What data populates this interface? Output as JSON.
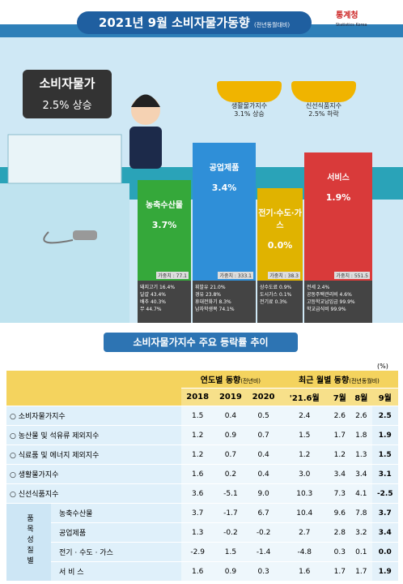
{
  "header": {
    "title": "2021년 9월 소비자물가동향",
    "note": "(전년동월대비)",
    "logo": "통계청",
    "logo_sub": "Statistics Korea"
  },
  "headline": {
    "label": "소비자물가",
    "value": "2.5% 상승"
  },
  "baskets": [
    {
      "label": "생활물가지수",
      "value": "3.1% 상승"
    },
    {
      "label": "신선식품지수",
      "value": "2.5% 하락"
    }
  ],
  "categories": [
    {
      "name": "농축수산물",
      "value": "3.7%",
      "weight": "가중치 : 77.1",
      "items": [
        "돼지고기 16.4%",
        "달걀 43.4%",
        "배추 40.3%",
        "무 44.7%"
      ]
    },
    {
      "name": "공업제품",
      "value": "3.4%",
      "weight": "가중치 : 333.1",
      "items": [
        "휘발유 21.0%",
        "경유 23.8%",
        "휴대전화기 8.3%",
        "남자학생복 74.1%"
      ]
    },
    {
      "name": "전기·수도·가스",
      "value": "0.0%",
      "weight": "가중치 : 38.3",
      "items": [
        "상수도료 0.9%",
        "도시가스 0.1%",
        "전기료 0.3%"
      ]
    },
    {
      "name": "서비스",
      "value": "1.9%",
      "weight": "가중치 : 551.5",
      "items": [
        "전세 2.4%",
        "공동주택관리비 4.6%",
        "고등학교납입금 99.9%",
        "학교급식비 99.9%"
      ]
    }
  ],
  "section_title": "소비자물가지수 주요 등락률 추이",
  "unit": "(%)",
  "table": {
    "group_headers": [
      {
        "label": "연도별 동향",
        "note": "(전년비)"
      },
      {
        "label": "최근 월별 동향",
        "note": "(전년동월비)"
      }
    ],
    "columns": [
      "2018",
      "2019",
      "2020",
      "'21.6월",
      "7월",
      "8월",
      "9월"
    ],
    "group_label": "품목성질별",
    "rows": [
      {
        "label": "○ 소비자물가지수",
        "values": [
          "1.5",
          "0.4",
          "0.5",
          "2.4",
          "2.6",
          "2.6",
          "2.5"
        ]
      },
      {
        "label": "○ 농산물 및 석유류 제외지수",
        "values": [
          "1.2",
          "0.9",
          "0.7",
          "1.5",
          "1.7",
          "1.8",
          "1.9"
        ]
      },
      {
        "label": "○ 식료품 및 에너지 제외지수",
        "values": [
          "1.2",
          "0.7",
          "0.4",
          "1.2",
          "1.2",
          "1.3",
          "1.5"
        ]
      },
      {
        "label": "○ 생활물가지수",
        "values": [
          "1.6",
          "0.2",
          "0.4",
          "3.0",
          "3.4",
          "3.4",
          "3.1"
        ]
      },
      {
        "label": "○ 신선식품지수",
        "values": [
          "3.6",
          "-5.1",
          "9.0",
          "10.3",
          "7.3",
          "4.1",
          "-2.5"
        ]
      },
      {
        "label": "농축수산물",
        "values": [
          "3.7",
          "-1.7",
          "6.7",
          "10.4",
          "9.6",
          "7.8",
          "3.7"
        ],
        "grouped": true
      },
      {
        "label": "공업제품",
        "values": [
          "1.3",
          "-0.2",
          "-0.2",
          "2.7",
          "2.8",
          "3.2",
          "3.4"
        ],
        "grouped": true
      },
      {
        "label": "전기 · 수도 · 가스",
        "values": [
          "-2.9",
          "1.5",
          "-1.4",
          "-4.8",
          "0.3",
          "0.1",
          "0.0"
        ],
        "grouped": true
      },
      {
        "label": "서 비 스",
        "values": [
          "1.6",
          "0.9",
          "0.3",
          "1.6",
          "1.7",
          "1.7",
          "1.9"
        ],
        "grouped": true
      }
    ]
  }
}
